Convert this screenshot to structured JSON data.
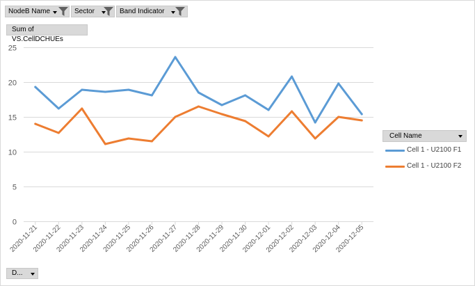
{
  "filters": [
    {
      "label": "NodeB Name",
      "icon": "filter-funnel-icon"
    },
    {
      "label": "Sector",
      "icon": "filter-funnel-icon"
    },
    {
      "label": "Band Indicator",
      "icon": "filter-funnel-icon"
    }
  ],
  "value_field": "Sum of VS.CellDCHUEs",
  "legend": {
    "title": "Cell Name"
  },
  "axis_field_button": "D...",
  "colors": {
    "series1": "#5b9bd5",
    "series2": "#ed7d31",
    "grid": "#d9d9d9",
    "axis": "#d9d9d9",
    "text": "#595959"
  },
  "chart_data": {
    "type": "line",
    "title": "",
    "xlabel": "",
    "ylabel": "",
    "ylim": [
      0,
      25
    ],
    "yticks": [
      0,
      5,
      10,
      15,
      20,
      25
    ],
    "grid": true,
    "legend_position": "right",
    "categories": [
      "2020-11-21",
      "2020-11-22",
      "2020-11-23",
      "2020-11-24",
      "2020-11-25",
      "2020-11-26",
      "2020-11-27",
      "2020-11-28",
      "2020-11-29",
      "2020-11-30",
      "2020-12-01",
      "2020-12-02",
      "2020-12-03",
      "2020-12-04",
      "2020-12-05"
    ],
    "series": [
      {
        "name": "Cell 1 - U2100 F1",
        "values": [
          19.3,
          16.2,
          18.9,
          18.6,
          18.9,
          18.1,
          23.6,
          18.5,
          16.7,
          18.1,
          16.0,
          20.8,
          14.2,
          19.8,
          15.4
        ]
      },
      {
        "name": "Cell 1 - U2100 F2",
        "values": [
          14.0,
          12.7,
          16.2,
          11.1,
          11.9,
          11.5,
          15.0,
          16.5,
          15.4,
          14.4,
          12.2,
          15.8,
          11.9,
          15.0,
          14.5
        ]
      }
    ]
  }
}
